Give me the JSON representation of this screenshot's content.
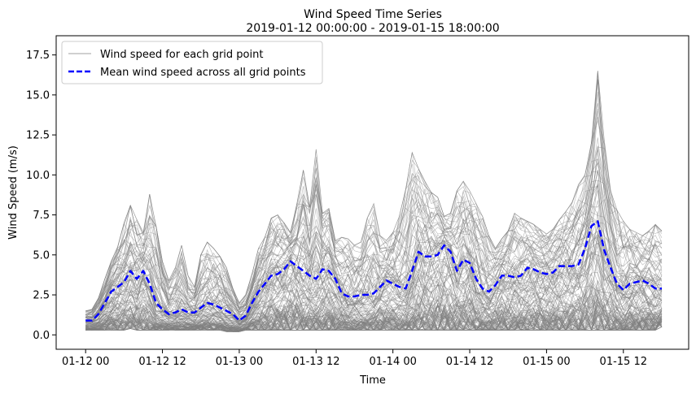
{
  "chart_data": {
    "type": "line",
    "title": "Wind Speed Time Series",
    "subtitle": "2019-01-12 00:00:00 - 2019-01-15 18:00:00",
    "xlabel": "Time",
    "ylabel": "Wind Speed (m/s)",
    "x_ticks": [
      "01-12 00",
      "01-12 12",
      "01-13 00",
      "01-13 12",
      "01-14 00",
      "01-14 12",
      "01-15 00",
      "01-15 12"
    ],
    "x_tick_hours": [
      0,
      12,
      24,
      36,
      48,
      60,
      72,
      84
    ],
    "x_range_hours": [
      -4.6,
      94.2
    ],
    "y_ticks": [
      "0.0",
      "2.5",
      "5.0",
      "7.5",
      "10.0",
      "12.5",
      "15.0",
      "17.5"
    ],
    "y_tick_values": [
      0,
      2.5,
      5,
      7.5,
      10,
      12.5,
      15,
      17.5
    ],
    "ylim": [
      -0.9,
      18.7
    ],
    "legend_position": "top-left",
    "grid": false,
    "colors": {
      "grid_points": "#808080",
      "mean": "#0000ff"
    },
    "series": [
      {
        "name": "Wind speed for each grid point",
        "kind": "ensemble",
        "x_hours": [
          0,
          1,
          2,
          3,
          4,
          5,
          6,
          7,
          8,
          9,
          10,
          11,
          12,
          13,
          14,
          15,
          16,
          17,
          18,
          19,
          20,
          21,
          22,
          23,
          24,
          25,
          26,
          27,
          28,
          29,
          30,
          31,
          32,
          33,
          34,
          35,
          36,
          37,
          38,
          39,
          40,
          41,
          42,
          43,
          44,
          45,
          46,
          47,
          48,
          49,
          50,
          51,
          52,
          53,
          54,
          55,
          56,
          57,
          58,
          59,
          60,
          61,
          62,
          63,
          64,
          65,
          66,
          67,
          68,
          69,
          70,
          71,
          72,
          73,
          74,
          75,
          76,
          77,
          78,
          79,
          80,
          81,
          82,
          83,
          84,
          85,
          86,
          87,
          88,
          89,
          90
        ],
        "lower": [
          0.3,
          0.3,
          0.3,
          0.3,
          0.3,
          0.3,
          0.3,
          0.4,
          0.3,
          0.3,
          0.3,
          0.3,
          0.3,
          0.3,
          0.3,
          0.3,
          0.3,
          0.3,
          0.3,
          0.3,
          0.3,
          0.3,
          0.2,
          0.2,
          0.2,
          0.3,
          0.3,
          0.3,
          0.3,
          0.3,
          0.3,
          0.3,
          0.3,
          0.3,
          0.3,
          0.3,
          0.3,
          0.3,
          0.3,
          0.3,
          0.3,
          0.3,
          0.3,
          0.3,
          0.3,
          0.3,
          0.3,
          0.3,
          0.3,
          0.3,
          0.3,
          0.3,
          0.3,
          0.3,
          0.3,
          0.3,
          0.3,
          0.3,
          0.3,
          0.3,
          0.3,
          0.3,
          0.3,
          0.3,
          0.3,
          0.3,
          0.3,
          0.3,
          0.3,
          0.3,
          0.3,
          0.3,
          0.3,
          0.3,
          0.3,
          0.3,
          0.3,
          0.3,
          0.3,
          0.3,
          0.3,
          0.3,
          0.3,
          0.3,
          0.3,
          0.3,
          0.3,
          0.3,
          0.3,
          0.3,
          0.5
        ],
        "upper": [
          1.5,
          1.6,
          2.3,
          3.5,
          4.6,
          5.5,
          7.0,
          8.1,
          7.2,
          6.4,
          8.8,
          6.8,
          4.6,
          3.4,
          4.2,
          5.6,
          3.7,
          3.0,
          5.0,
          5.8,
          5.4,
          4.9,
          4.2,
          2.9,
          2.0,
          2.5,
          3.8,
          5.4,
          6.1,
          7.3,
          7.5,
          7.0,
          6.4,
          8.2,
          10.3,
          8.0,
          11.6,
          7.6,
          7.9,
          5.9,
          6.1,
          6.0,
          5.6,
          5.8,
          7.3,
          8.2,
          6.2,
          5.9,
          6.4,
          7.4,
          9.1,
          11.4,
          10.4,
          9.6,
          8.9,
          8.6,
          7.4,
          7.6,
          9.0,
          9.6,
          9.0,
          8.2,
          7.4,
          6.2,
          5.4,
          6.0,
          6.5,
          7.6,
          7.3,
          7.1,
          6.9,
          6.6,
          6.3,
          6.6,
          7.2,
          7.7,
          8.3,
          9.4,
          10.0,
          12.0,
          16.5,
          12.2,
          9.0,
          7.8,
          7.1,
          6.6,
          6.4,
          6.2,
          6.5,
          6.9,
          6.5
        ]
      },
      {
        "name": "Mean wind speed across all grid points",
        "x_hours": [
          0,
          1,
          2,
          3,
          4,
          5,
          6,
          7,
          8,
          9,
          10,
          11,
          12,
          13,
          14,
          15,
          16,
          17,
          18,
          19,
          20,
          21,
          22,
          23,
          24,
          25,
          26,
          27,
          28,
          29,
          30,
          31,
          32,
          33,
          34,
          35,
          36,
          37,
          38,
          39,
          40,
          41,
          42,
          43,
          44,
          45,
          46,
          47,
          48,
          49,
          50,
          51,
          52,
          53,
          54,
          55,
          56,
          57,
          58,
          59,
          60,
          61,
          62,
          63,
          64,
          65,
          66,
          67,
          68,
          69,
          70,
          71,
          72,
          73,
          74,
          75,
          76,
          77,
          78,
          79,
          80,
          81,
          82,
          83,
          84,
          85,
          86,
          87,
          88,
          89,
          90
        ],
        "values": [
          0.9,
          0.9,
          1.3,
          2.0,
          2.7,
          3.0,
          3.3,
          4.0,
          3.5,
          4.0,
          3.2,
          2.0,
          1.6,
          1.3,
          1.4,
          1.6,
          1.4,
          1.4,
          1.7,
          2.0,
          1.9,
          1.7,
          1.5,
          1.3,
          0.9,
          1.2,
          2.0,
          2.7,
          3.2,
          3.7,
          3.8,
          4.1,
          4.6,
          4.3,
          4.0,
          3.7,
          3.5,
          4.1,
          4.0,
          3.5,
          2.6,
          2.4,
          2.4,
          2.5,
          2.5,
          2.6,
          3.0,
          3.4,
          3.2,
          3.0,
          2.9,
          4.0,
          5.2,
          4.9,
          4.9,
          5.0,
          5.6,
          5.2,
          4.0,
          4.7,
          4.5,
          3.5,
          2.9,
          2.7,
          3.1,
          3.7,
          3.7,
          3.6,
          3.7,
          4.2,
          4.1,
          3.9,
          3.8,
          3.9,
          4.3,
          4.3,
          4.3,
          4.4,
          5.4,
          6.8,
          7.1,
          5.3,
          4.2,
          3.2,
          2.8,
          3.2,
          3.3,
          3.4,
          3.2,
          2.9,
          2.9
        ]
      }
    ]
  }
}
